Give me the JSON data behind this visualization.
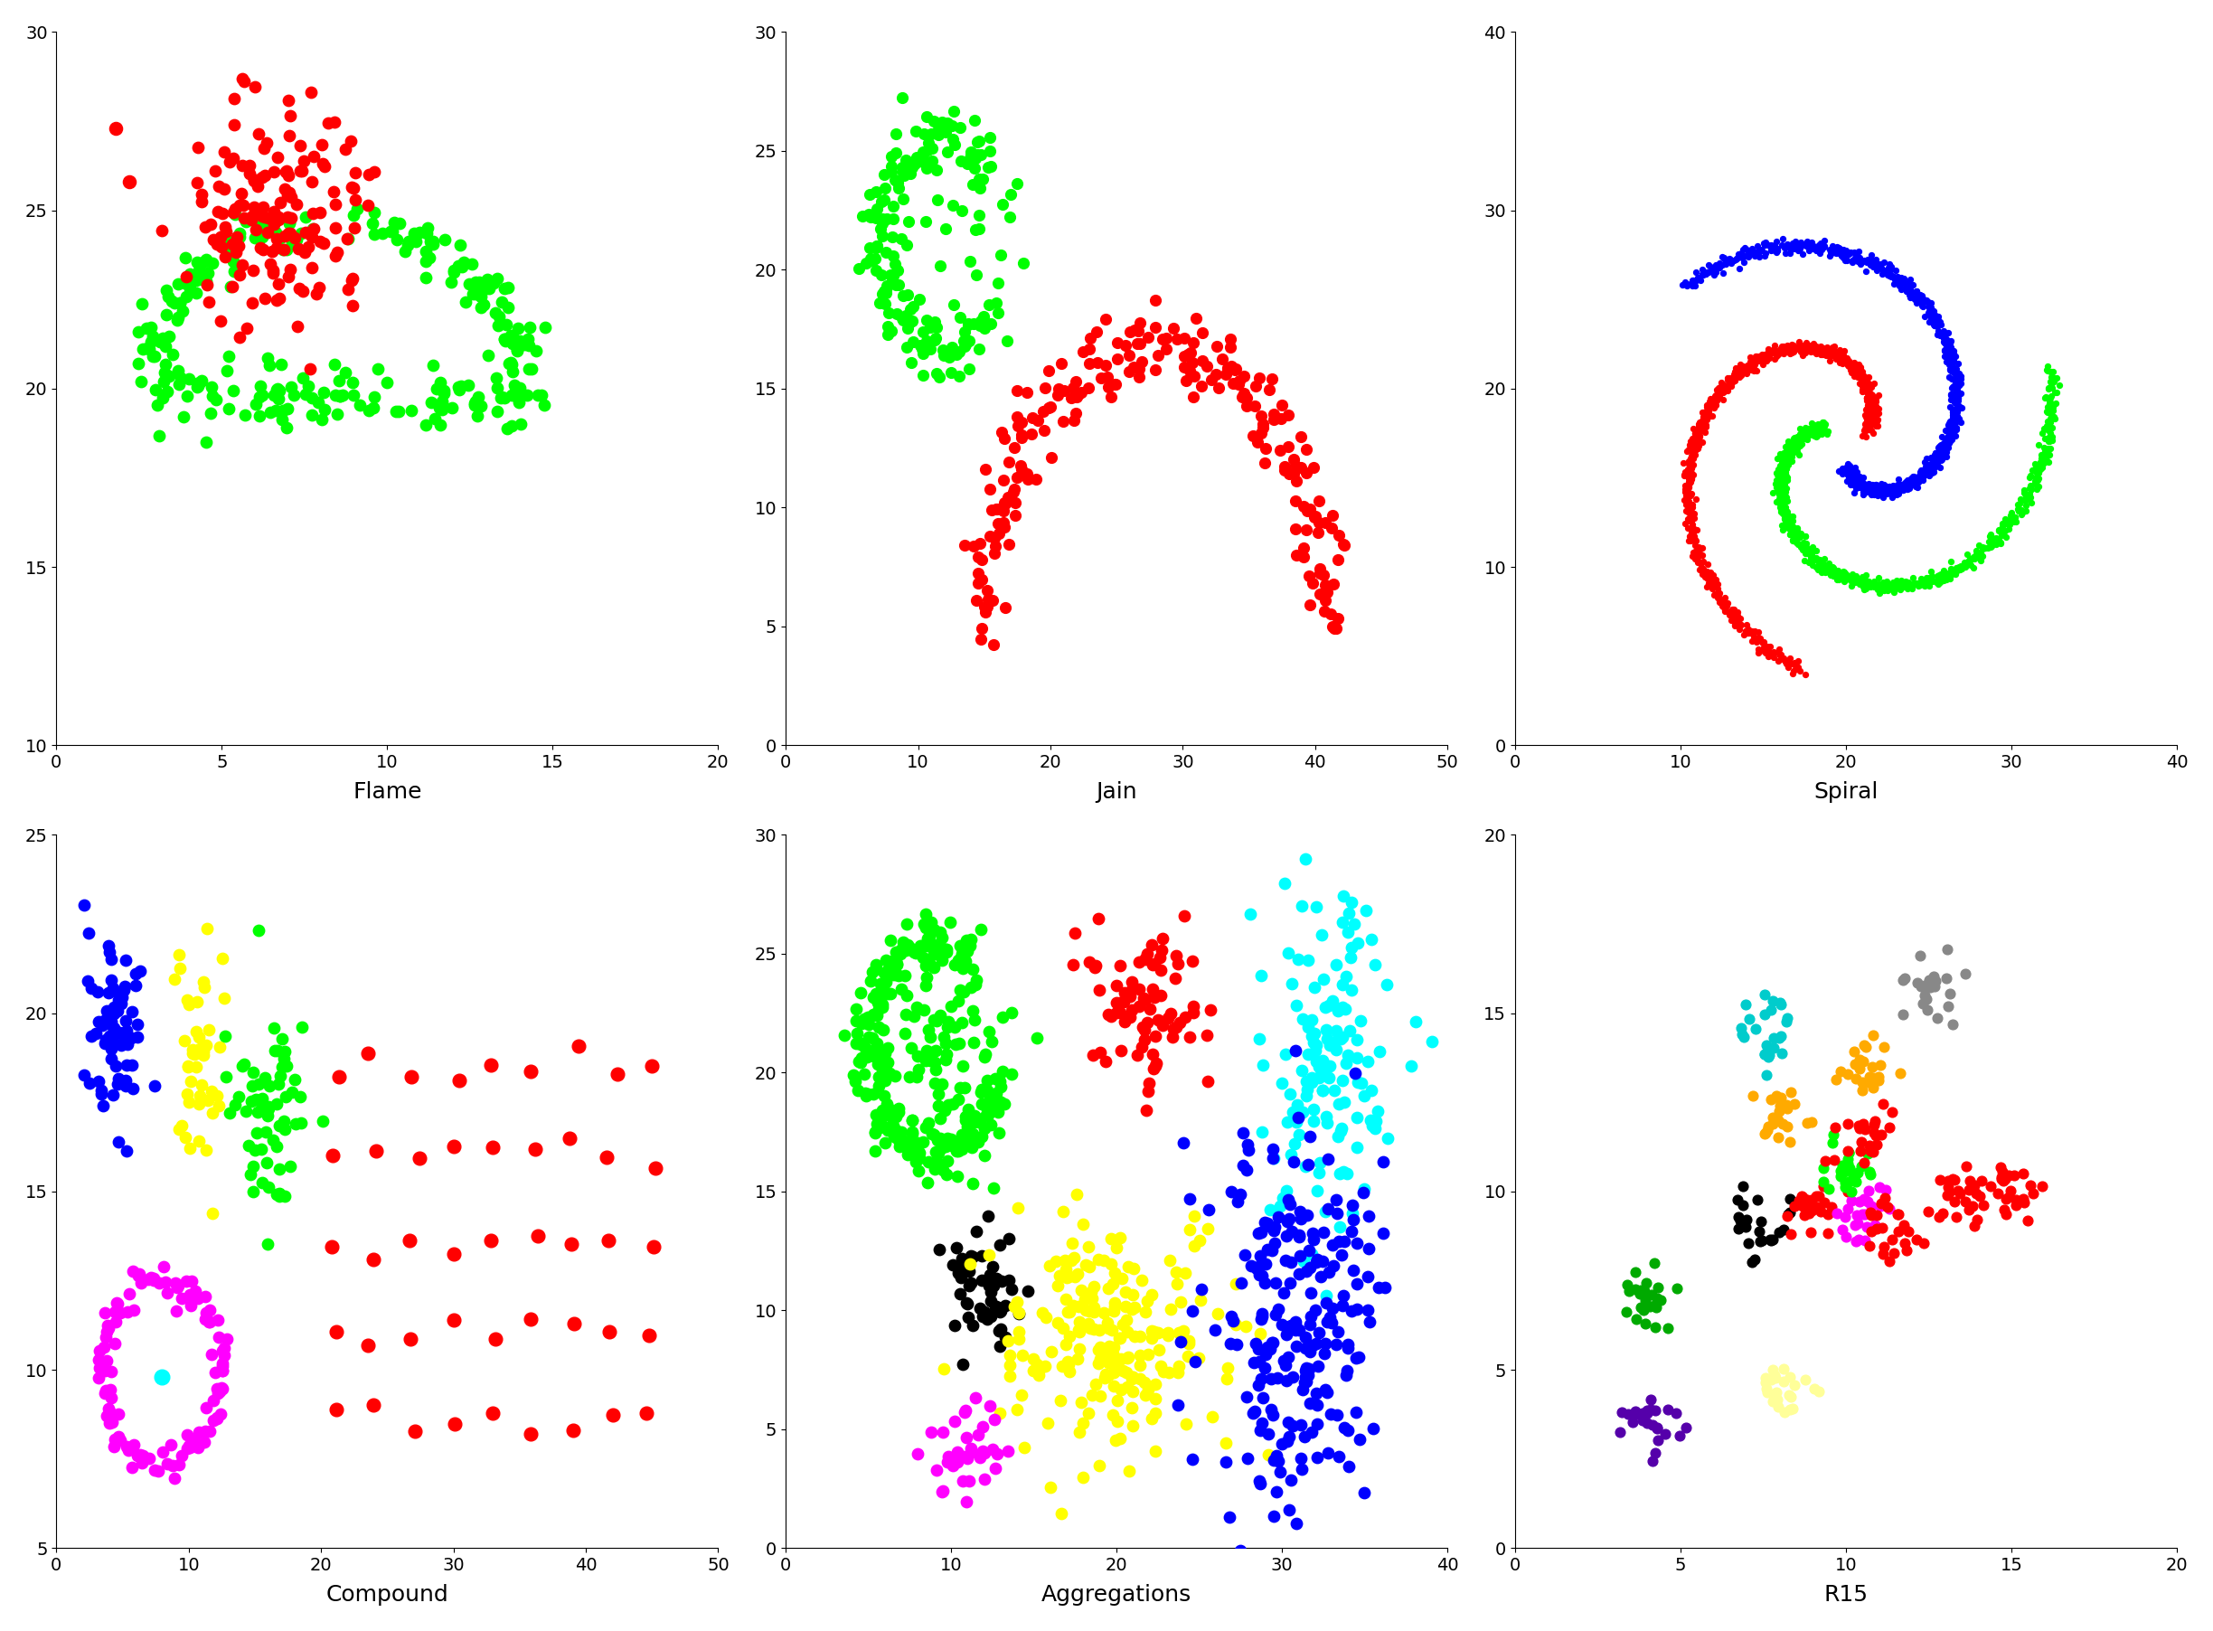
{
  "background_color": "#ffffff",
  "title_fontsize": 18,
  "tick_fontsize": 14,
  "spiral_ms": 18,
  "blob_ms": 80,
  "flame": {
    "xlim": [
      0,
      20
    ],
    "ylim": [
      10,
      30
    ],
    "xticks": [
      0,
      5,
      10,
      15,
      20
    ],
    "yticks": [
      10,
      15,
      20,
      25,
      30
    ]
  },
  "jain": {
    "xlim": [
      0,
      50
    ],
    "ylim": [
      0,
      30
    ],
    "xticks": [
      0,
      10,
      20,
      30,
      40,
      50
    ],
    "yticks": [
      0,
      5,
      10,
      15,
      20,
      25,
      30
    ]
  },
  "spiral": {
    "xlim": [
      0,
      40
    ],
    "ylim": [
      0,
      40
    ],
    "xticks": [
      0,
      10,
      20,
      30,
      40
    ],
    "yticks": [
      0,
      10,
      20,
      30,
      40
    ]
  },
  "compound": {
    "xlim": [
      0,
      50
    ],
    "ylim": [
      5,
      25
    ],
    "xticks": [
      0,
      10,
      20,
      30,
      40,
      50
    ],
    "yticks": [
      5,
      10,
      15,
      20,
      25
    ]
  },
  "aggregations": {
    "xlim": [
      0,
      40
    ],
    "ylim": [
      0,
      30
    ],
    "xticks": [
      0,
      10,
      20,
      30,
      40
    ],
    "yticks": [
      0,
      5,
      10,
      15,
      20,
      25,
      30
    ]
  },
  "r15": {
    "xlim": [
      0,
      20
    ],
    "ylim": [
      0,
      20
    ],
    "xticks": [
      0,
      5,
      10,
      15,
      20
    ],
    "yticks": [
      0,
      5,
      10,
      15,
      20
    ]
  }
}
